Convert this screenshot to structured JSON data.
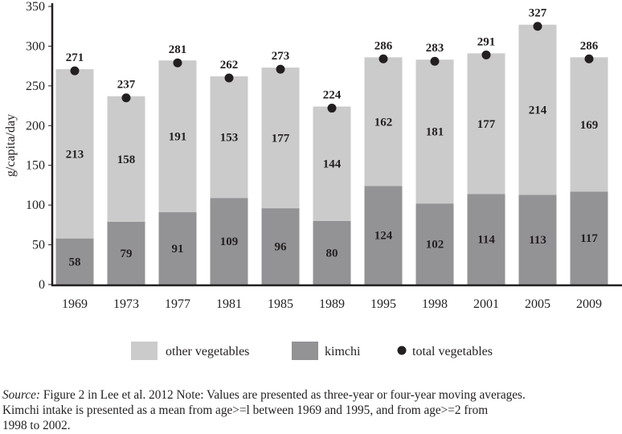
{
  "chart_data": {
    "type": "bar",
    "stacked": true,
    "ylabel": "g/capita/day",
    "xlabel": "",
    "ylim": [
      0,
      350
    ],
    "yticks": [
      0,
      50,
      100,
      150,
      200,
      250,
      300,
      350
    ],
    "grid": false,
    "legend_position": "bottom",
    "categories": [
      "1969",
      "1973",
      "1977",
      "1981",
      "1985",
      "1989",
      "1995",
      "1998",
      "2001",
      "2005",
      "2009"
    ],
    "series": [
      {
        "name": "kimchi",
        "type": "bar",
        "color": "#939396",
        "values": [
          58,
          79,
          91,
          109,
          96,
          80,
          124,
          102,
          114,
          113,
          117
        ]
      },
      {
        "name": "other vegetables",
        "type": "bar",
        "color": "#cbcbcc",
        "values": [
          213,
          158,
          191,
          153,
          177,
          144,
          162,
          181,
          177,
          214,
          169
        ]
      },
      {
        "name": "total vegetables",
        "type": "scatter",
        "color": "#231f20",
        "values": [
          271,
          237,
          281,
          262,
          273,
          224,
          286,
          283,
          291,
          327,
          286
        ]
      }
    ],
    "legend": [
      "other vegetables",
      "kimchi",
      "total vegetables"
    ]
  },
  "caption": {
    "source_label": "Source:",
    "text_line1": " Figure 2 in Lee et al. 2012 Note: Values are presented as three-year or four-year moving averages.",
    "text_line2": "Kimchi intake is presented as a mean from age>=l between 1969 and 1995, and from age>=2 from",
    "text_line3": "1998 to 2002."
  }
}
